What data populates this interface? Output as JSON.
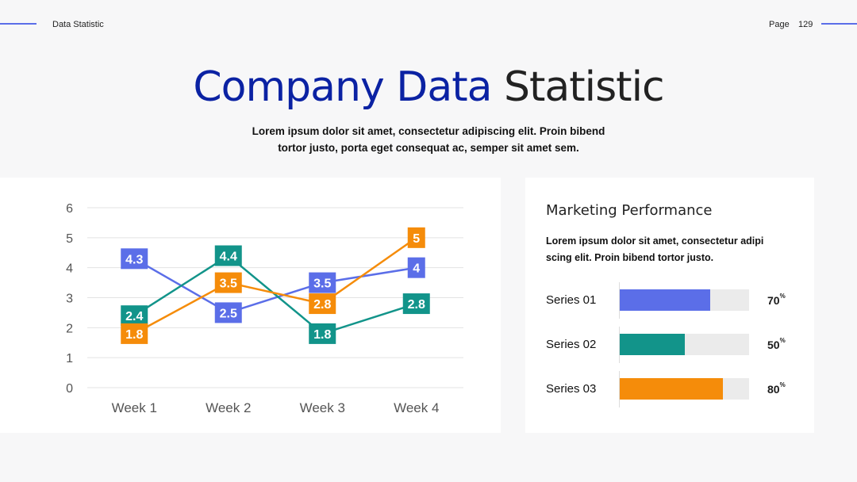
{
  "header": {
    "left_label": "Data Statistic",
    "page_label": "Page",
    "page_number": "129"
  },
  "title": {
    "part1": "Company Data",
    "part2": "Statistic"
  },
  "subtitle": "Lorem ipsum dolor sit amet, consectetur adipiscing elit. Proin bibend tortor justo, porta eget consequat ac, semper sit amet sem.",
  "chart_data": {
    "type": "line",
    "categories": [
      "Week 1",
      "Week 2",
      "Week 3",
      "Week 4"
    ],
    "ylim": [
      0,
      6
    ],
    "yticks": [
      0,
      1,
      2,
      3,
      4,
      5,
      6
    ],
    "grid": true,
    "series": [
      {
        "values": [
          4.3,
          2.5,
          3.5,
          4
        ],
        "labels": [
          "4.3",
          "2.5",
          "3.5",
          "4"
        ],
        "color": "#5b6ee8"
      },
      {
        "values": [
          2.4,
          4.4,
          1.8,
          2.8
        ],
        "labels": [
          "2.4",
          "4.4",
          "1.8",
          "2.8"
        ],
        "color": "#12948a"
      },
      {
        "values": [
          1.8,
          3.5,
          2.8,
          5
        ],
        "labels": [
          "1.8",
          "3.5",
          "2.8",
          "5"
        ],
        "color": "#f58c0a"
      }
    ]
  },
  "marketing": {
    "title": "Marketing Performance",
    "description": "Lorem ipsum dolor sit amet, consectetur adipi scing elit. Proin bibend tortor justo.",
    "items": [
      {
        "label": "Series 01",
        "value": 70,
        "pct": "70",
        "unit": "%",
        "color": "#5b6ee8"
      },
      {
        "label": "Series 02",
        "value": 50,
        "pct": "50",
        "unit": "%",
        "color": "#12948a"
      },
      {
        "label": "Series 03",
        "value": 80,
        "pct": "80",
        "unit": "%",
        "color": "#f58c0a"
      }
    ]
  }
}
